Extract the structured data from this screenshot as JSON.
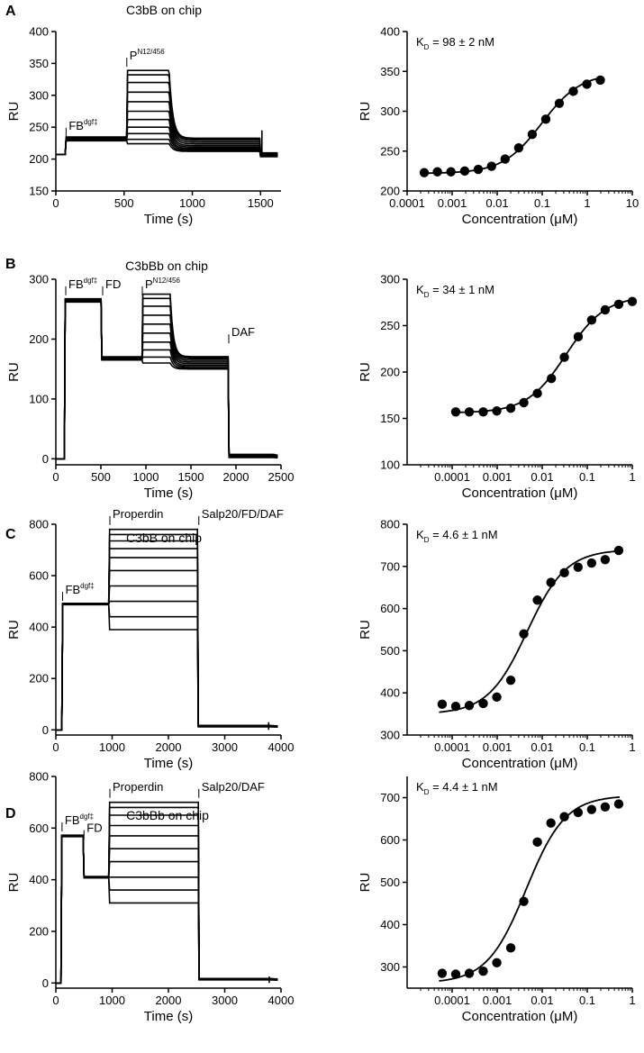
{
  "chart_data": [
    {
      "id": "A-sensorgram",
      "type": "line",
      "panel_letter": "A",
      "title": "C3bB on chip",
      "xlabel": "Time (s)",
      "ylabel": "RU",
      "xlim": [
        0,
        1650
      ],
      "ylim": [
        150,
        400
      ],
      "xticks": [
        0,
        500,
        1000,
        1500
      ],
      "yticks": [
        150,
        200,
        250,
        300,
        350,
        400
      ],
      "annotations": [
        {
          "x": 75,
          "y": 232,
          "text": "FB",
          "sup": "dgf‡"
        },
        {
          "x": 520,
          "y": 342,
          "text": "P",
          "sup": "N12/456"
        }
      ],
      "curve_model": {
        "kind": "sensorgram",
        "baseline": 207,
        "spikes": [
          {
            "x": 1510,
            "y": 245
          }
        ],
        "phases": [
          {
            "t0": 75,
            "t1": 520,
            "level": 232,
            "end": 226,
            "rate": 0.05
          },
          {
            "t0": 520,
            "t1": 830,
            "level": [
              224,
              231,
              240,
              250,
              262,
              275,
              290,
              305,
              320,
              332,
              339
            ],
            "rate": 0.15,
            "end": 212
          },
          {
            "t0": 1500,
            "t1": 1640,
            "level": 207,
            "end": 207,
            "rate": 0.05
          }
        ]
      }
    },
    {
      "id": "A-fit",
      "type": "scatter",
      "panel_letter": "A",
      "xlabel": "Concentration (μM)",
      "ylabel": "RU",
      "xscale": "log",
      "xlim": [
        0.0001,
        10
      ],
      "ylim": [
        200,
        400
      ],
      "xticks": [
        0.0001,
        0.001,
        0.01,
        0.1,
        1,
        10
      ],
      "xtick_labels": [
        "0.0001",
        "0.001",
        "0.01",
        "0.1",
        "1",
        "10"
      ],
      "yticks": [
        200,
        250,
        300,
        350,
        400
      ],
      "kd_label": {
        "k": "K",
        "sub": "D",
        "rest": " = 98 ± 2 nM"
      },
      "x": [
        0.00024,
        0.00047,
        0.00094,
        0.0019,
        0.0038,
        0.0075,
        0.015,
        0.03,
        0.06,
        0.12,
        0.24,
        0.49,
        0.98,
        1.95
      ],
      "y": [
        223,
        224,
        224,
        225,
        227,
        231,
        240,
        254,
        271,
        290,
        310,
        325,
        334,
        339
      ],
      "fit": {
        "min": 222,
        "max": 348,
        "kd": 0.098
      }
    },
    {
      "id": "B-sensorgram",
      "type": "line",
      "panel_letter": "B",
      "title": "C3bBb on chip",
      "xlabel": "Time (s)",
      "ylabel": "RU",
      "xlim": [
        0,
        2500
      ],
      "ylim": [
        -10,
        300
      ],
      "xticks": [
        0,
        500,
        1000,
        1500,
        2000,
        2500
      ],
      "yticks": [
        0,
        100,
        200,
        300
      ],
      "annotations": [
        {
          "x": 110,
          "y": 270,
          "text": "FB",
          "sup": "dgf‡"
        },
        {
          "x": 520,
          "y": 270,
          "text": "FD",
          "sup": ""
        },
        {
          "x": 960,
          "y": 270,
          "text": "P",
          "sup": "N12/456"
        },
        {
          "x": 1920,
          "y": 190,
          "text": "DAF",
          "sup": ""
        }
      ],
      "curve_model": {
        "kind": "sensorgram",
        "baseline": 0,
        "spikes": [],
        "phases": [
          {
            "t0": 100,
            "t1": 510,
            "level": 265,
            "end": 262,
            "rate": 0.05
          },
          {
            "t0": 510,
            "t1": 960,
            "level": 168,
            "end": 158,
            "rate": 0.04
          },
          {
            "t0": 960,
            "t1": 1270,
            "level": [
              160,
              170,
              182,
              195,
              210,
              225,
              240,
              255,
              268,
              275
            ],
            "rate": 0.12,
            "end": 150
          },
          {
            "t0": 1920,
            "t1": 2420,
            "level": 5,
            "end": 0,
            "rate": 0.02
          }
        ]
      }
    },
    {
      "id": "B-fit",
      "type": "scatter",
      "panel_letter": "B",
      "xlabel": "Concentration (μM)",
      "ylabel": "RU",
      "xscale": "log",
      "xlim": [
        1e-05,
        1
      ],
      "ylim": [
        100,
        300
      ],
      "xticks": [
        0.0001,
        0.001,
        0.01,
        0.1,
        1
      ],
      "xtick_labels": [
        "0.0001",
        "0.001",
        "0.01",
        "0.1",
        "1"
      ],
      "yticks": [
        100,
        150,
        200,
        250,
        300
      ],
      "kd_label": {
        "k": "K",
        "sub": "D",
        "rest": " = 34 ± 1 nM"
      },
      "x": [
        0.00012,
        0.00024,
        0.00049,
        0.00098,
        0.002,
        0.0039,
        0.0078,
        0.016,
        0.031,
        0.063,
        0.125,
        0.25,
        0.5,
        1
      ],
      "y": [
        157,
        157,
        157,
        158,
        161,
        167,
        177,
        193,
        216,
        238,
        256,
        267,
        273,
        276
      ],
      "fit": {
        "min": 156,
        "max": 282,
        "kd": 0.034
      }
    },
    {
      "id": "C-sensorgram",
      "type": "line",
      "panel_letter": "C",
      "title": "C3bB on chip",
      "xlabel": "Time (s)",
      "ylabel": "RU",
      "xlim": [
        0,
        4000
      ],
      "ylim": [
        -20,
        800
      ],
      "xticks": [
        0,
        1000,
        2000,
        3000,
        4000
      ],
      "yticks": [
        0,
        200,
        400,
        600,
        800
      ],
      "annotations": [
        {
          "x": 120,
          "y": 495,
          "text": "FB",
          "sup": "dgf‡"
        },
        {
          "x": 960,
          "y": 790,
          "text": "Properdin",
          "sup": ""
        },
        {
          "x": 2540,
          "y": 790,
          "text": "Salp20/FD/DAF",
          "sup": ""
        }
      ],
      "curve_model": {
        "kind": "sensorgram",
        "baseline": 0,
        "spikes": [
          {
            "x": 3780,
            "y": 30
          }
        ],
        "phases": [
          {
            "t0": 110,
            "t1": 950,
            "level": 490,
            "end": 425,
            "rate": 0.006
          },
          {
            "t0": 950,
            "t1": 2520,
            "level": [
              390,
              440,
              500,
              560,
              620,
              670,
              705,
              735,
              760,
              780
            ],
            "rate": 0.003,
            "end": 30
          },
          {
            "t0": 2520,
            "t1": 3800,
            "level": 15,
            "end": 5,
            "rate": 0.005
          }
        ]
      }
    },
    {
      "id": "C-fit",
      "type": "scatter",
      "panel_letter": "C",
      "xlabel": "Concentration (μM)",
      "ylabel": "RU",
      "xscale": "log",
      "xlim": [
        1e-05,
        1
      ],
      "ylim": [
        300,
        800
      ],
      "xticks": [
        0.0001,
        0.001,
        0.01,
        0.1,
        1
      ],
      "xtick_labels": [
        "0.0001",
        "0.001",
        "0.01",
        "0.1",
        "1"
      ],
      "yticks": [
        300,
        400,
        500,
        600,
        700,
        800
      ],
      "kd_label": {
        "k": "K",
        "sub": "D",
        "rest": " = 4.6 ± 1 nM"
      },
      "x": [
        6e-05,
        0.00012,
        0.00024,
        0.00049,
        0.00098,
        0.002,
        0.0039,
        0.0078,
        0.0156,
        0.031,
        0.0625,
        0.125,
        0.25,
        0.5
      ],
      "y": [
        373,
        368,
        370,
        375,
        390,
        430,
        540,
        620,
        662,
        685,
        698,
        708,
        716,
        738
      ],
      "fit": {
        "min": 350,
        "max": 740,
        "kd": 0.0046
      }
    },
    {
      "id": "D-sensorgram",
      "type": "line",
      "panel_letter": "D",
      "title": "C3bBb on chip",
      "xlabel": "Time (s)",
      "ylabel": "RU",
      "xlim": [
        0,
        4000
      ],
      "ylim": [
        -20,
        800
      ],
      "xticks": [
        0,
        1000,
        2000,
        3000,
        4000
      ],
      "yticks": [
        0,
        200,
        400,
        600,
        800
      ],
      "annotations": [
        {
          "x": 110,
          "y": 580,
          "text": "FB",
          "sup": "dgf‡"
        },
        {
          "x": 500,
          "y": 550,
          "text": "FD",
          "sup": ""
        },
        {
          "x": 960,
          "y": 710,
          "text": "Properdin",
          "sup": ""
        },
        {
          "x": 2540,
          "y": 710,
          "text": "Salp20/DAF",
          "sup": ""
        }
      ],
      "curve_model": {
        "kind": "sensorgram",
        "baseline": 0,
        "spikes": [
          {
            "x": 3790,
            "y": 25
          }
        ],
        "phases": [
          {
            "t0": 100,
            "t1": 500,
            "level": 570,
            "end": 560,
            "rate": 0.02
          },
          {
            "t0": 500,
            "t1": 950,
            "level": 410,
            "end": 400,
            "rate": 0.02
          },
          {
            "t0": 950,
            "t1": 2540,
            "level": [
              310,
              360,
              410,
              470,
              520,
              570,
              610,
              650,
              680,
              700
            ],
            "rate": 0.003,
            "end": 30
          },
          {
            "t0": 2540,
            "t1": 3800,
            "level": 15,
            "end": 5,
            "rate": 0.005
          }
        ]
      }
    },
    {
      "id": "D-fit",
      "type": "scatter",
      "panel_letter": "D",
      "xlabel": "Concentration (μM)",
      "ylabel": "RU",
      "xscale": "log",
      "xlim": [
        1e-05,
        1
      ],
      "ylim": [
        250,
        750
      ],
      "xticks": [
        0.0001,
        0.001,
        0.01,
        0.1,
        1
      ],
      "xtick_labels": [
        "0.0001",
        "0.001",
        "0.01",
        "0.1",
        "1"
      ],
      "yticks": [
        300,
        400,
        500,
        600,
        700
      ],
      "kd_label": {
        "k": "K",
        "sub": "D",
        "rest": " = 4.4 ± 1 nM"
      },
      "x": [
        6e-05,
        0.00012,
        0.00024,
        0.00049,
        0.00098,
        0.002,
        0.0039,
        0.0078,
        0.0156,
        0.031,
        0.0625,
        0.125,
        0.25,
        0.5
      ],
      "y": [
        285,
        283,
        285,
        290,
        310,
        345,
        455,
        595,
        640,
        655,
        665,
        672,
        678,
        685
      ],
      "fit": {
        "min": 262,
        "max": 705,
        "kd": 0.0044
      }
    }
  ]
}
